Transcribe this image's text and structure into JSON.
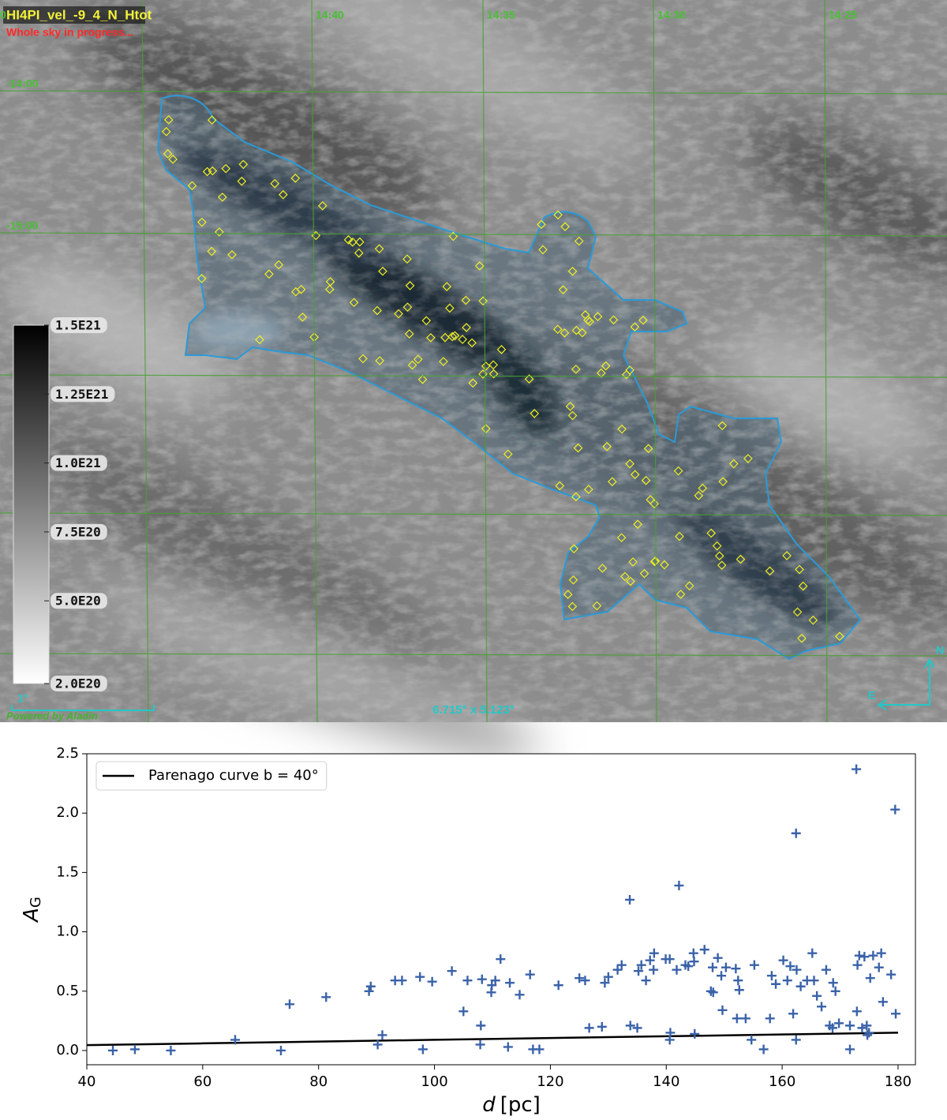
{
  "sky_image": {
    "title": "HI4PI_vel_-9_4_N_Htot",
    "status": "Whole sky in progress...",
    "ra_labels": [
      "0",
      "14:40",
      "14:35",
      "14:30",
      "14:25"
    ],
    "dec_labels": [
      "-14:00",
      "-15:00"
    ],
    "colorbar": {
      "lim": [
        2e+20,
        1.5e+21
      ],
      "ticks": [
        {
          "value": 1.5e+21,
          "label": "1.5E21"
        },
        {
          "value": 1.25e+21,
          "label": "1.25E21"
        },
        {
          "value": 1e+21,
          "label": "1.0E21"
        },
        {
          "value": 7.5e+20,
          "label": "7.5E20"
        },
        {
          "value": 5e+20,
          "label": "5.0E20"
        },
        {
          "value": 2e+20,
          "label": "2.0E20"
        }
      ]
    },
    "scale_label": "1°",
    "credit": "Powered by Aladin",
    "field_size": "6.715° x 5.123°",
    "compass": {
      "north": "N",
      "east": "E"
    }
  },
  "chart_data": {
    "type": "scatter",
    "xlabel": {
      "var": "d",
      "unit": "[pc]"
    },
    "ylabel": {
      "main": "A",
      "sub": "G"
    },
    "xlim": [
      40,
      183
    ],
    "ylim": [
      -0.12,
      2.5
    ],
    "xticks": [
      40,
      60,
      80,
      100,
      120,
      140,
      160,
      180
    ],
    "yticks": [
      {
        "value": 0,
        "label": "0.0"
      },
      0.5,
      {
        "value": 1,
        "label": "1.0"
      },
      1.5,
      {
        "value": 2,
        "label": "2.0"
      },
      2.5
    ],
    "legend": "upper left",
    "series": [
      {
        "name": "Parenago curve b = 40°",
        "type": "line",
        "color": "#000000",
        "x": [
          40,
          60,
          80,
          100,
          120,
          140,
          160,
          180
        ],
        "values": [
          0.045,
          0.06,
          0.075,
          0.09,
          0.105,
          0.12,
          0.135,
          0.15
        ]
      },
      {
        "type": "scatter",
        "marker": "+",
        "color": "#3a62a8",
        "x": [
          44.5,
          48.3,
          54.5,
          65.6,
          73.5,
          75,
          81.3,
          88.7,
          89,
          90.2,
          91,
          93.2,
          94.4,
          98,
          97.5,
          99.6,
          103,
          105,
          105.7,
          108,
          107.9,
          108.2,
          109.8,
          109.9,
          110.5,
          111.4,
          112.7,
          113,
          114.7,
          116.5,
          117,
          118.1,
          121.4,
          125,
          126,
          126.7,
          128.9,
          129.4,
          130,
          131.6,
          132.3,
          133.7,
          133.8,
          135,
          135.2,
          135.7,
          136.5,
          137.2,
          137.8,
          137.9,
          139.9,
          140.6,
          140.7,
          140.6,
          142.2,
          141.8,
          143.3,
          143.8,
          144.8,
          144.7,
          144.9,
          146.6,
          147.7,
          148,
          148.1,
          148.9,
          149.5,
          149.7,
          150.3,
          152,
          152.4,
          152.2,
          152.6,
          153.7,
          154.7,
          155.2,
          156.8,
          157.9,
          158.9,
          158.2,
          160.2,
          160.9,
          161.9,
          162.4,
          162.4,
          161.4,
          162.5,
          163.2,
          164.3,
          165.2,
          165.5,
          166,
          166.8,
          167.6,
          168.2,
          168.7,
          168.8,
          169.2,
          169.8,
          171.7,
          171.7,
          172.8,
          173.3,
          173,
          172.9,
          173.8,
          174.2,
          174.6,
          174.7,
          175,
          175.2,
          175.7,
          176.7,
          177.1,
          177.4,
          178.8,
          179.5,
          179.6
        ],
        "values": [
          0,
          0.01,
          0,
          0.09,
          0,
          0.39,
          0.45,
          0.5,
          0.54,
          0.05,
          0.13,
          0.59,
          0.59,
          0.01,
          0.62,
          0.58,
          0.67,
          0.33,
          0.59,
          0.21,
          0.05,
          0.6,
          0.49,
          0.55,
          0.59,
          0.77,
          0.03,
          0.57,
          0.47,
          0.64,
          0.01,
          0.01,
          0.55,
          0.61,
          0.59,
          0.19,
          0.2,
          0.57,
          0.62,
          0.68,
          0.72,
          1.27,
          0.21,
          0.19,
          0.67,
          0.72,
          0.59,
          0.76,
          0.68,
          0.82,
          0.77,
          0.77,
          0.15,
          0.09,
          1.39,
          0.68,
          0.72,
          0.71,
          0.75,
          0.82,
          0.14,
          0.85,
          0.5,
          0.7,
          0.49,
          0.78,
          0.63,
          0.34,
          0.7,
          0.69,
          0.59,
          0.27,
          0.51,
          0.27,
          0.09,
          0.72,
          0.01,
          0.27,
          0.56,
          0.63,
          0.76,
          0.59,
          0.31,
          1.83,
          0.09,
          0.71,
          0.68,
          0.54,
          0.59,
          0.82,
          0.59,
          0.46,
          0.37,
          0.68,
          0.21,
          0.19,
          0.57,
          0.5,
          0.23,
          0.21,
          0.01,
          2.37,
          0.8,
          0.72,
          0.33,
          0.19,
          0.79,
          0.21,
          0.13,
          0.15,
          0.61,
          0.8,
          0.7,
          0.82,
          0.41,
          0.64,
          2.03,
          0.31
        ]
      }
    ]
  }
}
